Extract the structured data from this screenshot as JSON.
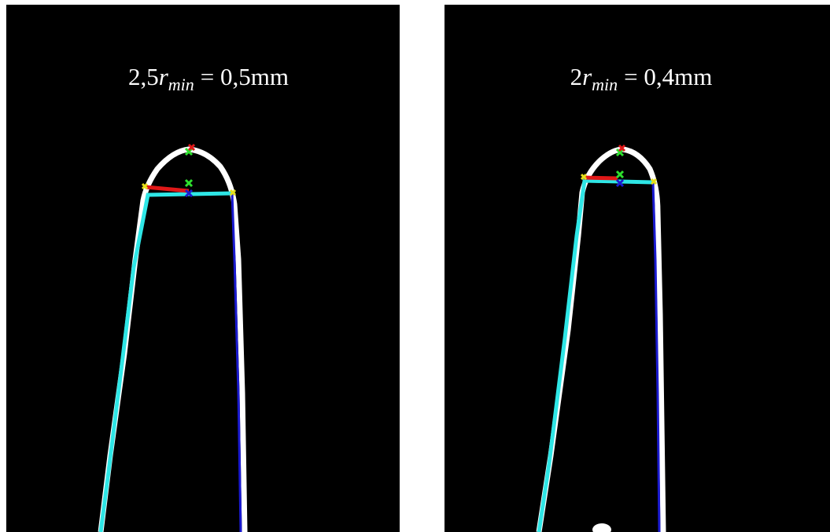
{
  "panels": [
    {
      "label": {
        "coefficient": "2,5",
        "symbol": "r",
        "subscript": "min",
        "result": "= 0,5mm"
      }
    },
    {
      "label": {
        "coefficient": "2",
        "symbol": "r",
        "subscript": "min",
        "result": "= 0,4mm"
      }
    }
  ]
}
